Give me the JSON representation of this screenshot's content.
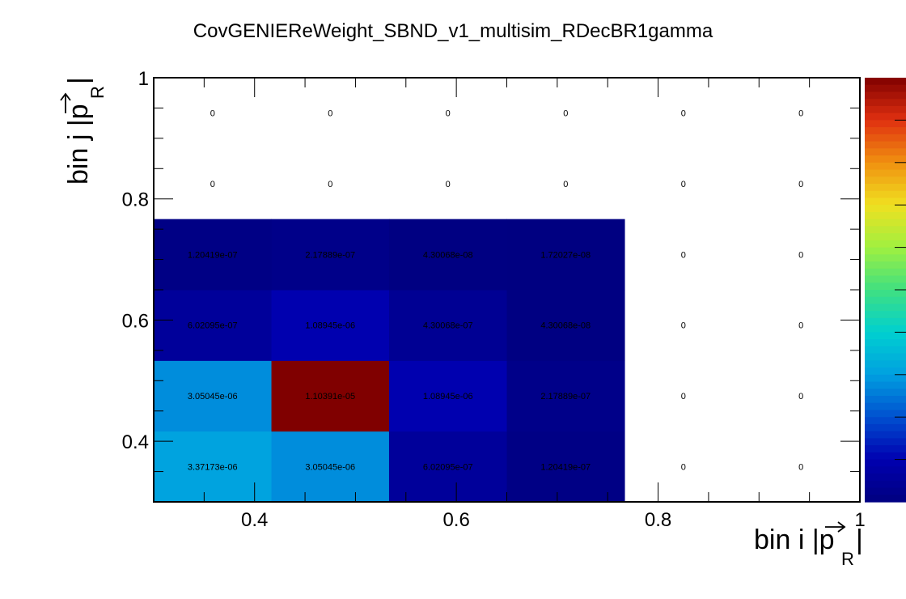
{
  "chart_data": {
    "type": "heatmap",
    "title": "CovGENIEReWeight_SBND_v1_multisim_RDecBR1gamma",
    "xlabel_main": "bin i |p",
    "xlabel_sub": "R",
    "xlabel_end": "|",
    "ylabel_main": "bin j |p",
    "ylabel_sub": "R",
    "ylabel_end": "|",
    "xlim": [
      0.3,
      1.0
    ],
    "ylim": [
      0.3,
      1.0
    ],
    "x_edges": [
      0.3,
      0.4167,
      0.5333,
      0.65,
      0.7667,
      0.8833,
      1.0
    ],
    "y_edges": [
      0.3,
      0.4167,
      0.5333,
      0.65,
      0.7667,
      0.8833,
      1.0
    ],
    "x_ticks": [
      "0.4",
      "0.6",
      "0.8",
      "1"
    ],
    "x_tick_values": [
      0.4,
      0.6,
      0.8,
      1.0
    ],
    "y_ticks": [
      "0.4",
      "0.6",
      "0.8",
      "1"
    ],
    "y_tick_values": [
      0.4,
      0.6,
      0.8,
      1.0
    ],
    "zlim": [
      0,
      1.10391e-05
    ],
    "cells": [
      {
        "i": 0,
        "j": 0,
        "value": 3.37173e-06,
        "label": "3.37173e-06"
      },
      {
        "i": 1,
        "j": 0,
        "value": 3.05045e-06,
        "label": "3.05045e-06"
      },
      {
        "i": 2,
        "j": 0,
        "value": 6.02095e-07,
        "label": "6.02095e-07"
      },
      {
        "i": 3,
        "j": 0,
        "value": 1.20419e-07,
        "label": "1.20419e-07"
      },
      {
        "i": 4,
        "j": 0,
        "value": 0,
        "label": "0"
      },
      {
        "i": 5,
        "j": 0,
        "value": 0,
        "label": "0"
      },
      {
        "i": 0,
        "j": 1,
        "value": 3.05045e-06,
        "label": "3.05045e-06"
      },
      {
        "i": 1,
        "j": 1,
        "value": 1.10391e-05,
        "label": "1.10391e-05"
      },
      {
        "i": 2,
        "j": 1,
        "value": 1.08945e-06,
        "label": "1.08945e-06"
      },
      {
        "i": 3,
        "j": 1,
        "value": 2.17889e-07,
        "label": "2.17889e-07"
      },
      {
        "i": 4,
        "j": 1,
        "value": 0,
        "label": "0"
      },
      {
        "i": 5,
        "j": 1,
        "value": 0,
        "label": "0"
      },
      {
        "i": 0,
        "j": 2,
        "value": 6.02095e-07,
        "label": "6.02095e-07"
      },
      {
        "i": 1,
        "j": 2,
        "value": 1.08945e-06,
        "label": "1.08945e-06"
      },
      {
        "i": 2,
        "j": 2,
        "value": 4.30068e-07,
        "label": "4.30068e-07"
      },
      {
        "i": 3,
        "j": 2,
        "value": 4.30068e-08,
        "label": "4.30068e-08"
      },
      {
        "i": 4,
        "j": 2,
        "value": 0,
        "label": "0"
      },
      {
        "i": 5,
        "j": 2,
        "value": 0,
        "label": "0"
      },
      {
        "i": 0,
        "j": 3,
        "value": 1.20419e-07,
        "label": "1.20419e-07"
      },
      {
        "i": 1,
        "j": 3,
        "value": 2.17889e-07,
        "label": "2.17889e-07"
      },
      {
        "i": 2,
        "j": 3,
        "value": 4.30068e-08,
        "label": "4.30068e-08"
      },
      {
        "i": 3,
        "j": 3,
        "value": 1.72027e-08,
        "label": "1.72027e-08"
      },
      {
        "i": 4,
        "j": 3,
        "value": 0,
        "label": "0"
      },
      {
        "i": 5,
        "j": 3,
        "value": 0,
        "label": "0"
      },
      {
        "i": 0,
        "j": 4,
        "value": 0,
        "label": "0"
      },
      {
        "i": 1,
        "j": 4,
        "value": 0,
        "label": "0"
      },
      {
        "i": 2,
        "j": 4,
        "value": 0,
        "label": "0"
      },
      {
        "i": 3,
        "j": 4,
        "value": 0,
        "label": "0"
      },
      {
        "i": 4,
        "j": 4,
        "value": 0,
        "label": "0"
      },
      {
        "i": 5,
        "j": 4,
        "value": 0,
        "label": "0"
      },
      {
        "i": 0,
        "j": 5,
        "value": 0,
        "label": "0"
      },
      {
        "i": 1,
        "j": 5,
        "value": 0,
        "label": "0"
      },
      {
        "i": 2,
        "j": 5,
        "value": 0,
        "label": "0"
      },
      {
        "i": 3,
        "j": 5,
        "value": 0,
        "label": "0"
      },
      {
        "i": 4,
        "j": 5,
        "value": 0,
        "label": "0"
      },
      {
        "i": 5,
        "j": 5,
        "value": 0,
        "label": "0"
      }
    ],
    "colormap": [
      "#000080",
      "#0000b0",
      "#0050d0",
      "#00a0e0",
      "#00d0d0",
      "#40e080",
      "#a0f040",
      "#f0e020",
      "#f09010",
      "#e03010",
      "#800000"
    ]
  }
}
